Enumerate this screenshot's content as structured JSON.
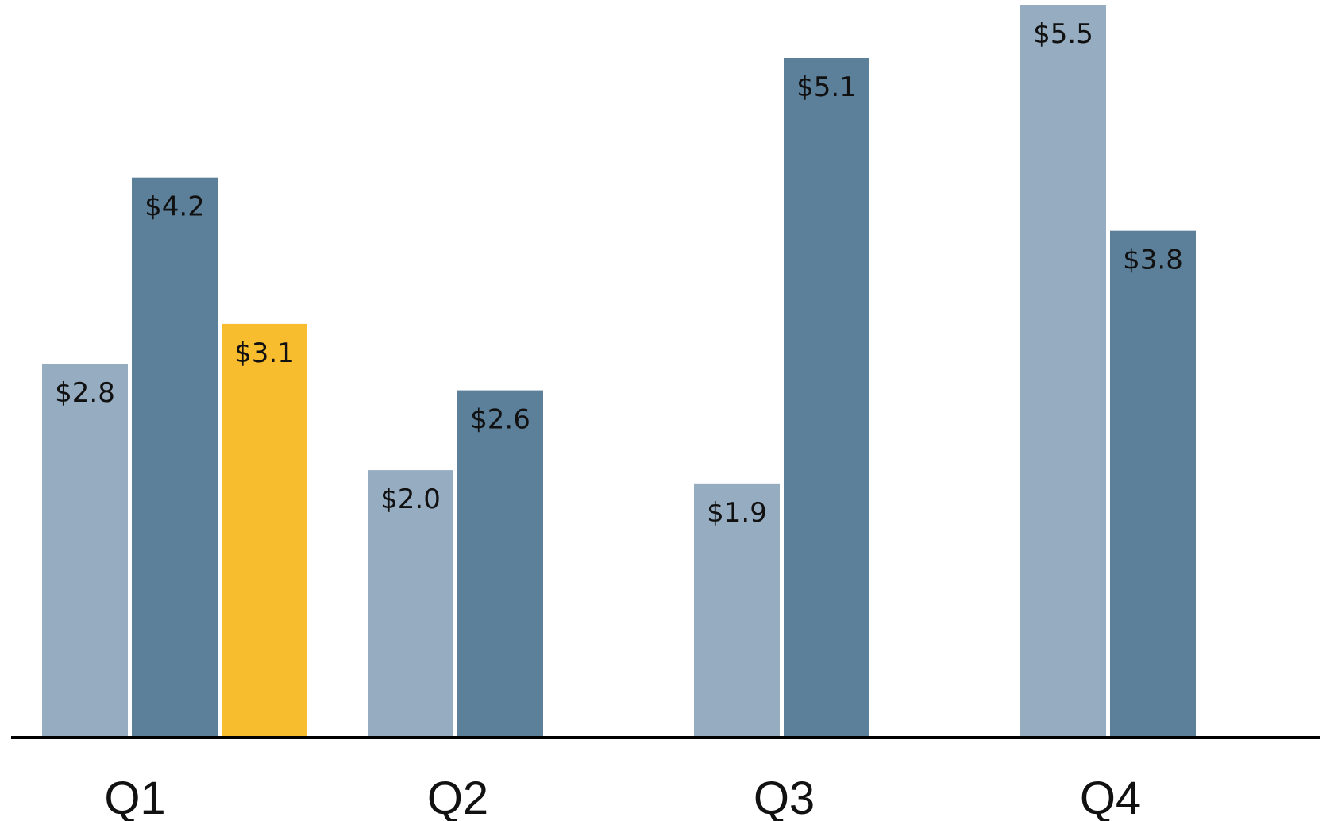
{
  "chart_data": {
    "type": "bar",
    "categories": [
      "Q1",
      "Q2",
      "Q3",
      "Q4"
    ],
    "series": [
      {
        "values": [
          2.8,
          2.0,
          1.9,
          5.5
        ],
        "color": "#96acc1"
      },
      {
        "values": [
          4.2,
          2.6,
          5.1,
          3.8
        ],
        "color": "#5c7f9a"
      },
      {
        "values": [
          3.1,
          null,
          null,
          null
        ],
        "color": "#f8bc2f"
      }
    ],
    "data_labels": [
      [
        "$2.8",
        "$2.0",
        "$1.9",
        "$5.5"
      ],
      [
        "$4.2",
        "$2.6",
        "$5.1",
        "$3.8"
      ],
      [
        "$3.1",
        null,
        null,
        null
      ]
    ],
    "ylim": [
      0,
      5.5
    ],
    "grid": false,
    "legend": "none",
    "axis_line_color": "#000000"
  }
}
